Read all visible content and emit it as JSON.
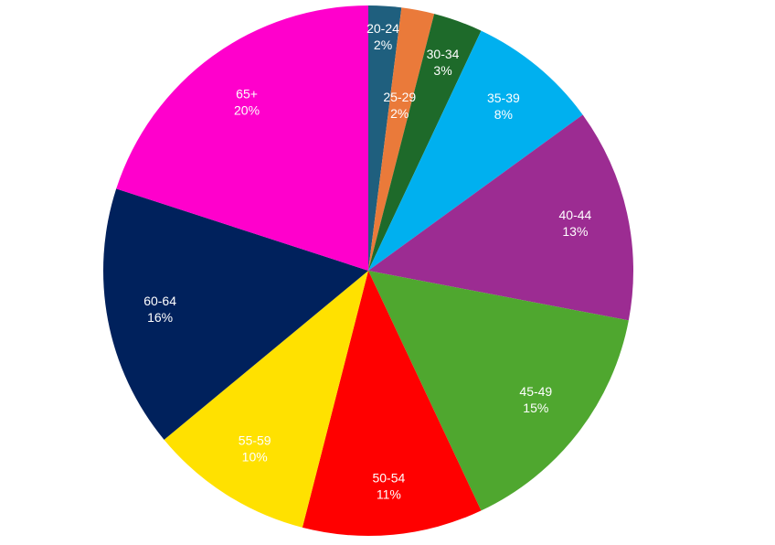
{
  "chart_data": {
    "type": "pie",
    "categories": [
      "20-24",
      "25-29",
      "30-34",
      "35-39",
      "40-44",
      "45-49",
      "50-54",
      "55-59",
      "60-64",
      "65+"
    ],
    "values": [
      2,
      2,
      3,
      8,
      13,
      15,
      11,
      10,
      16,
      20
    ],
    "value_labels": [
      "2%",
      "2%",
      "3%",
      "8%",
      "13%",
      "15%",
      "11%",
      "10%",
      "16%",
      "20%"
    ],
    "colors": [
      "#1f5f7e",
      "#ea7a3a",
      "#1e6a2a",
      "#00b0ef",
      "#9c2c92",
      "#4fa72f",
      "#ff0000",
      "#ffe100",
      "#00215c",
      "#ff00cc"
    ]
  }
}
